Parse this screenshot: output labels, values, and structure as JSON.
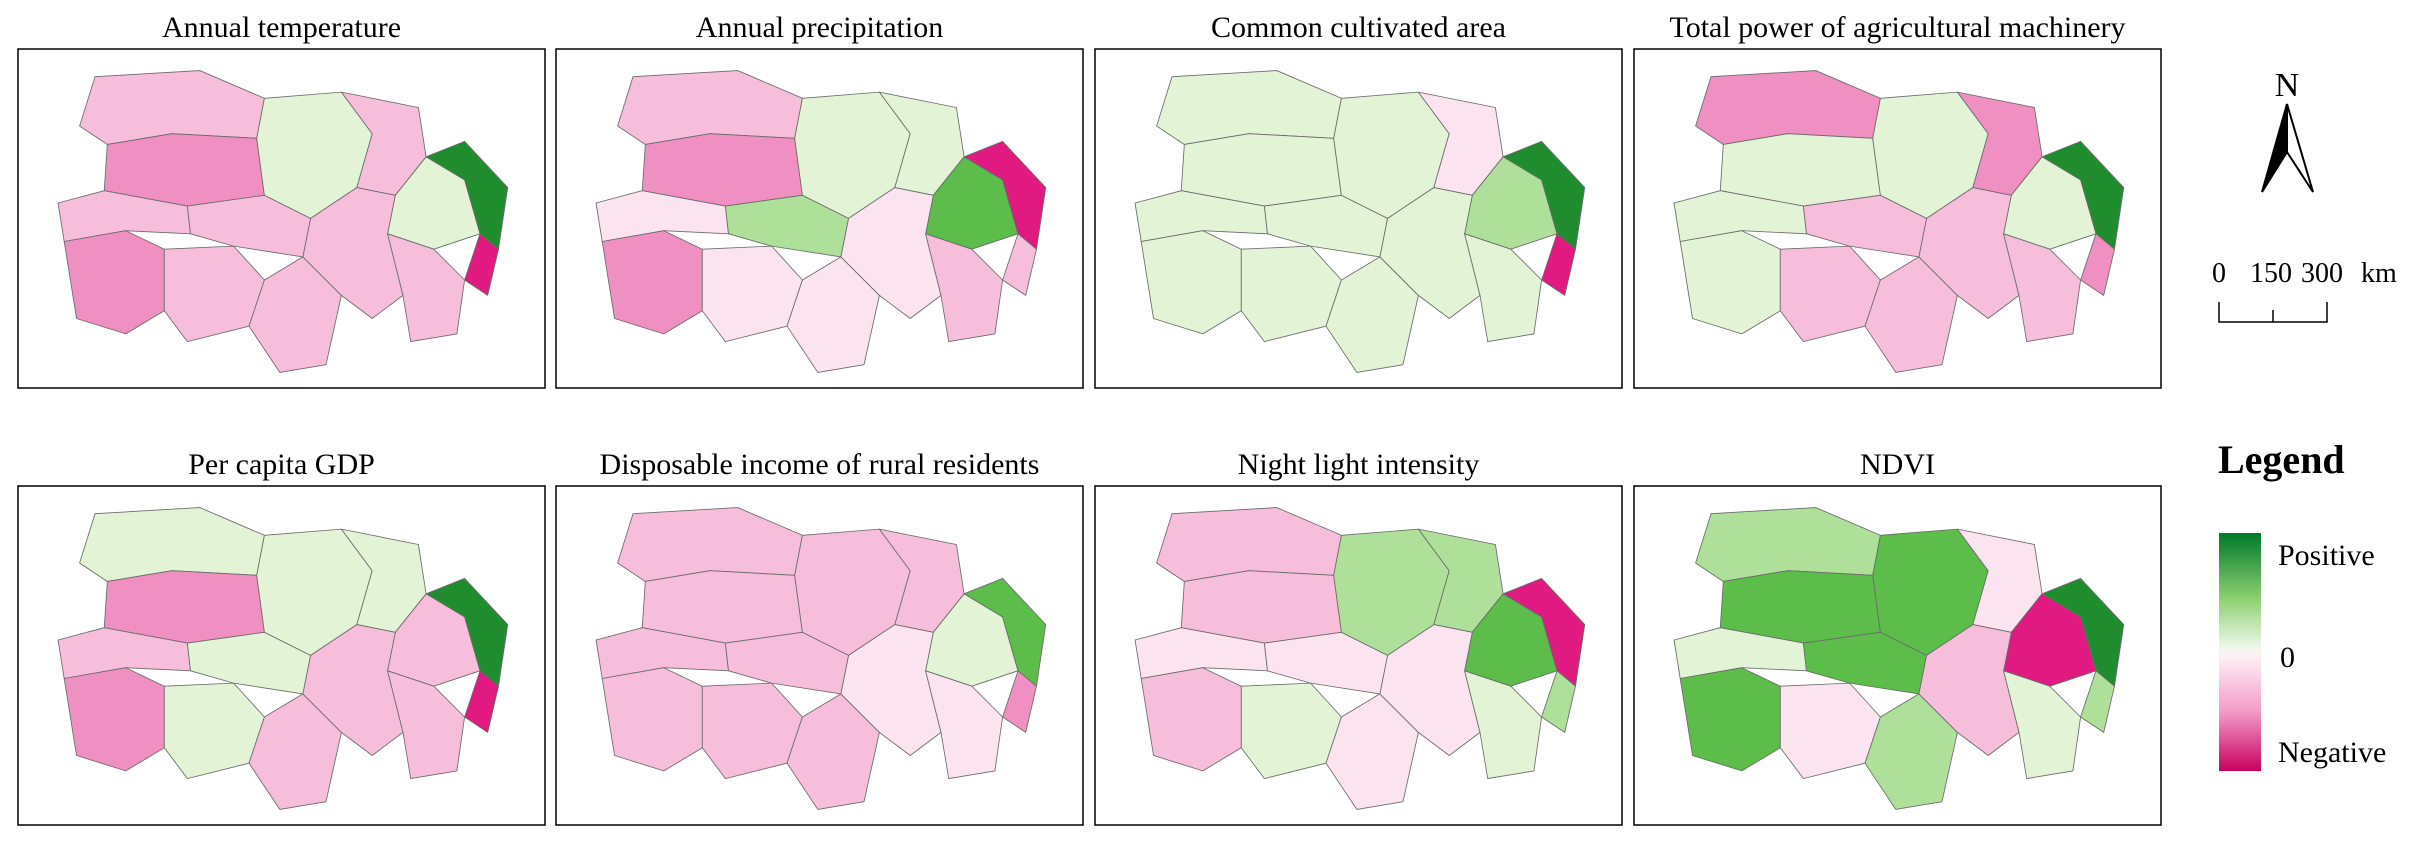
{
  "panels": [
    {
      "title": "Annual temperature"
    },
    {
      "title": "Annual precipitation"
    },
    {
      "title": "Common cultivated area"
    },
    {
      "title": "Total power of agricultural machinery"
    },
    {
      "title": "Per capita GDP"
    },
    {
      "title": "Disposable income of rural residents"
    },
    {
      "title": "Night light intensity"
    },
    {
      "title": "NDVI"
    }
  ],
  "north_arrow": {
    "label": "N"
  },
  "scale_bar": {
    "labels": [
      "0",
      "150",
      "300"
    ],
    "unit": "km"
  },
  "legend": {
    "title": "Legend",
    "positive": "Positive",
    "zero": "0",
    "negative": "Negative"
  }
}
